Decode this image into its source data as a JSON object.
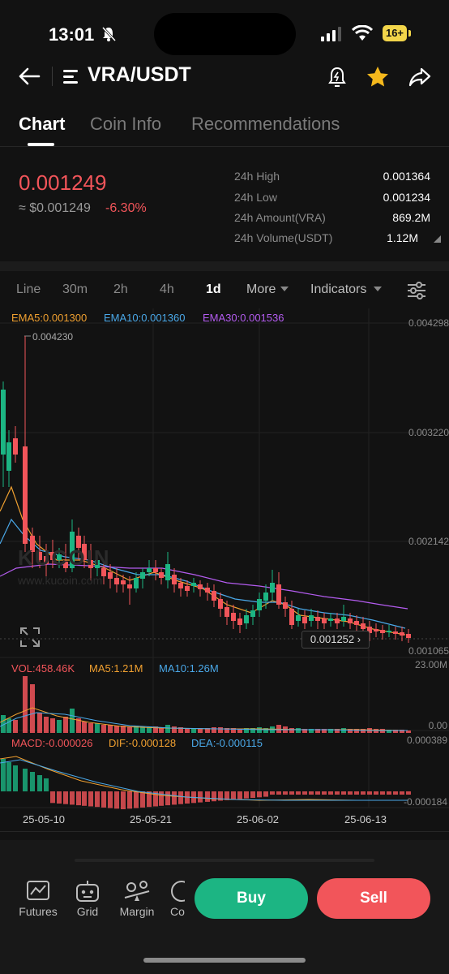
{
  "status_bar": {
    "time": "13:01",
    "battery": "16+"
  },
  "header": {
    "pair": "VRA/USDT"
  },
  "tabs": [
    {
      "label": "Chart"
    },
    {
      "label": "Coin Info"
    },
    {
      "label": "Recommendations"
    }
  ],
  "ticker": {
    "price": "0.001249",
    "usd_price": "≈ $0.001249",
    "change": "-6.30%",
    "stats": [
      {
        "label": "24h High",
        "value": "0.001364"
      },
      {
        "label": "24h Low",
        "value": "0.001234"
      },
      {
        "label": "24h Amount(VRA)",
        "value": "869.2M"
      },
      {
        "label": "24h Volume(USDT)",
        "value": "1.12M"
      }
    ]
  },
  "intervals": {
    "line": "Line",
    "m30": "30m",
    "h2": "2h",
    "h4": "4h",
    "d1": "1d",
    "more": "More",
    "indicators": "Indicators"
  },
  "main_legend": {
    "ema5": "EMA5:0.001300",
    "ema10": "EMA10:0.001360",
    "ema30": "EMA30:0.001536"
  },
  "price_axis": [
    "0.004298",
    "0.003220",
    "0.002142",
    "0.001065"
  ],
  "high_marker": "0.004230",
  "last_price_tag": "0.001252",
  "watermark": {
    "brand": "KUCOIN",
    "url": "www.kucoin.com"
  },
  "volume_legend": {
    "vol": "VOL:458.46K",
    "ma5": "MA5:1.21M",
    "ma10": "MA10:1.26M",
    "max": "23.00M",
    "min": "0.00"
  },
  "macd_legend": {
    "macd": "MACD:-0.000026",
    "dif": "DIF:-0.000128",
    "dea": "DEA:-0.000115",
    "max": "0.000389",
    "min": "-0.000184"
  },
  "dates": [
    "25-05-10",
    "25-05-21",
    "25-06-02",
    "25-06-13"
  ],
  "bottom_nav": [
    {
      "label": "Futures"
    },
    {
      "label": "Grid"
    },
    {
      "label": "Margin"
    },
    {
      "label": "Co"
    }
  ],
  "actions": {
    "buy": "Buy",
    "sell": "Sell"
  },
  "colors": {
    "up": "#1cb583",
    "down": "#f2555a",
    "ema5": "#f0a030",
    "ema10": "#4aa8e8",
    "ema30": "#b45cf0"
  }
}
